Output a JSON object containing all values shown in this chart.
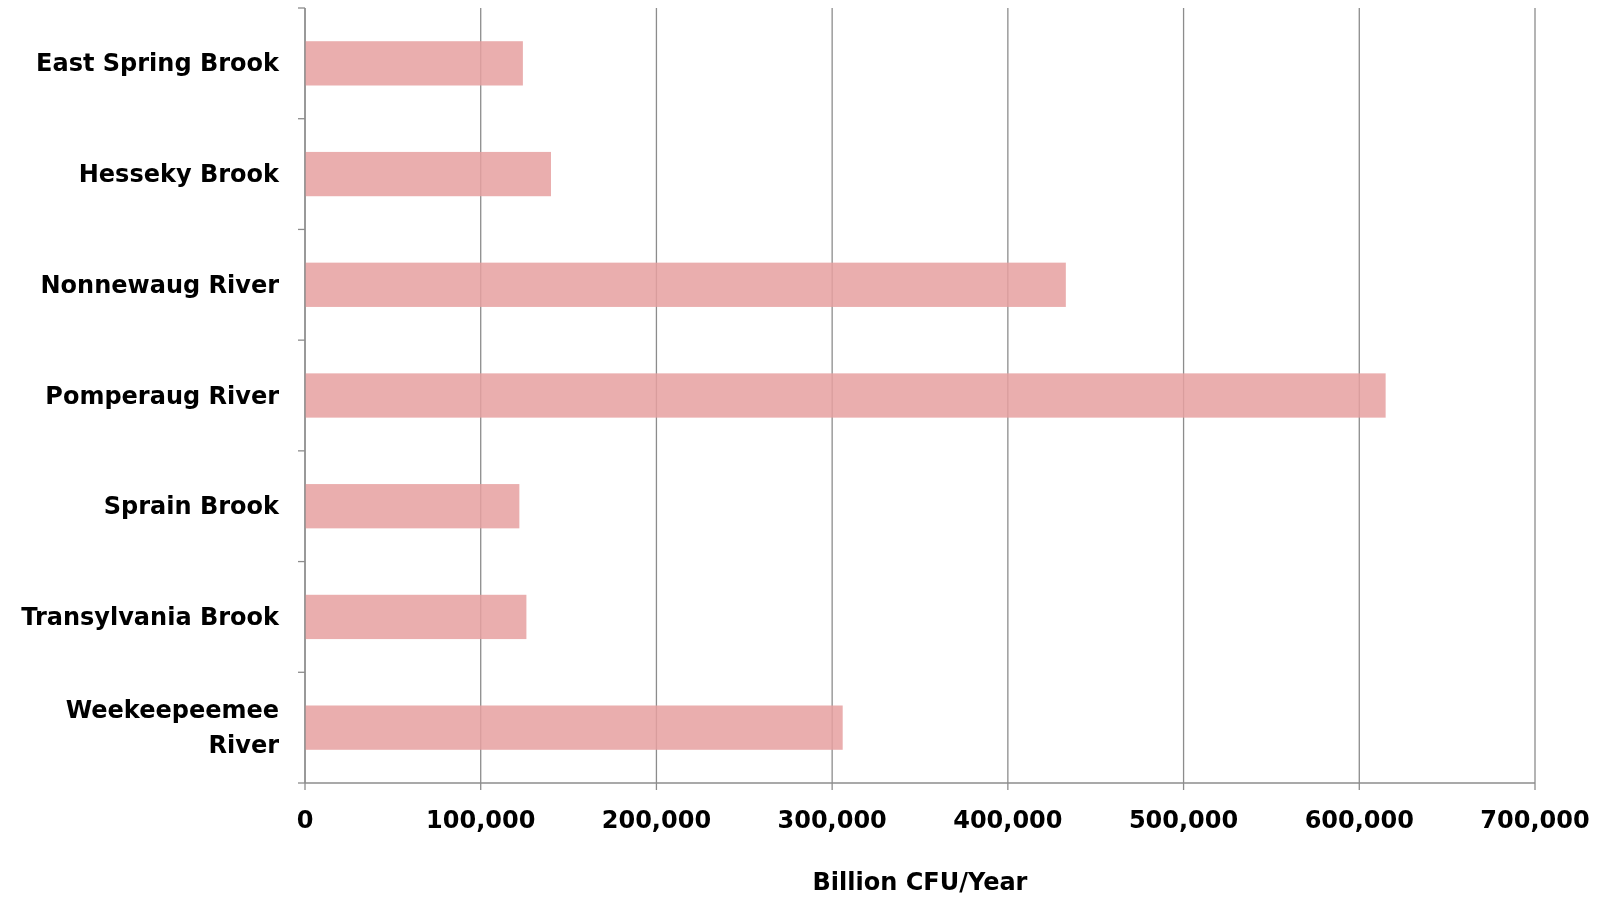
{
  "chart_data": {
    "type": "bar",
    "orientation": "horizontal",
    "xlabel": "Billion CFU/Year",
    "categories": [
      "East Spring Brook",
      "Hesseky Brook",
      "Nonnewaug River",
      "Pomperaug River",
      "Sprain Brook",
      "Transylvania Brook",
      "Weekeepeemee River"
    ],
    "values": [
      124000,
      140000,
      433000,
      615000,
      122000,
      126000,
      306000
    ],
    "color": "#e6a0a0",
    "xlim": [
      0,
      700000
    ],
    "xticks": [
      {
        "value": 0,
        "label": "0"
      },
      {
        "value": 100000,
        "label": "100,000"
      },
      {
        "value": 200000,
        "label": "200,000"
      },
      {
        "value": 300000,
        "label": "300,000"
      },
      {
        "value": 400000,
        "label": "400,000"
      },
      {
        "value": 500000,
        "label": "500,000"
      },
      {
        "value": 600000,
        "label": "600,000"
      },
      {
        "value": 700000,
        "label": "700,000"
      }
    ],
    "grid": "x"
  }
}
